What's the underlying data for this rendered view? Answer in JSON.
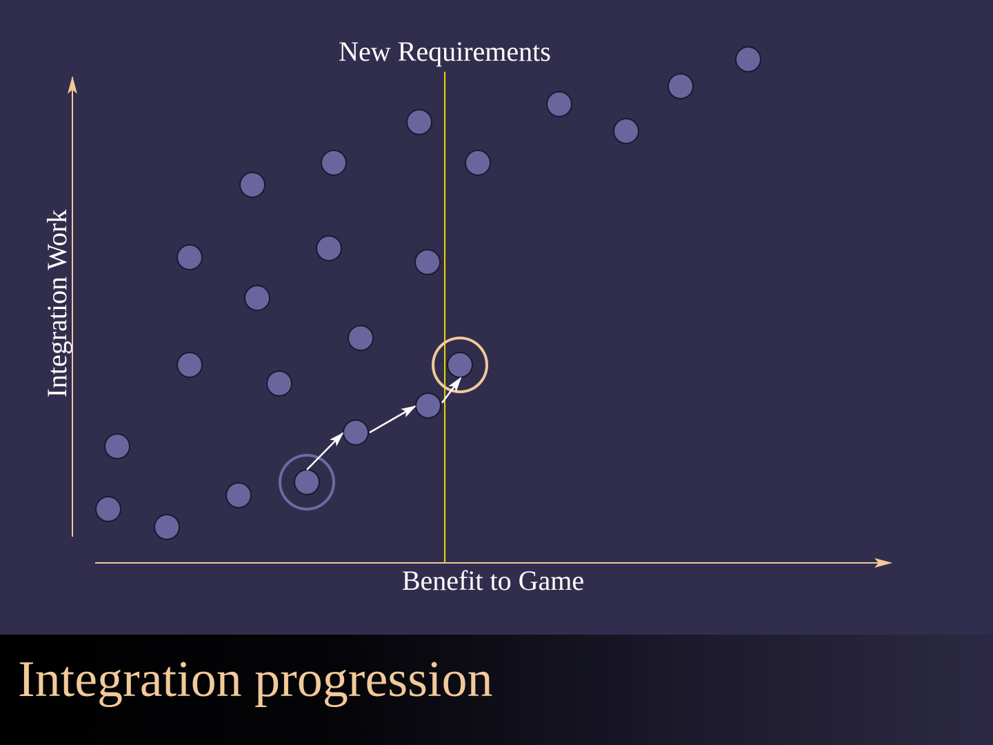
{
  "diagram": {
    "top_label": "New Requirements",
    "x_axis_label": "Benefit to Game",
    "y_axis_label": "Integration Work",
    "colors": {
      "background": "#312e4d",
      "axis": "#f2c99a",
      "divider": "#e8d800",
      "node_fill": "#6a659d",
      "node_stroke": "#1a1830",
      "start_ring": "#6f6aa3",
      "target_ring": "#f2c99a",
      "arrow": "#ffffff",
      "label": "#ffffff"
    },
    "path_description": "start node -> three arrow steps -> target node crossing the requirements line"
  },
  "footer": {
    "title": "Integration progression"
  }
}
